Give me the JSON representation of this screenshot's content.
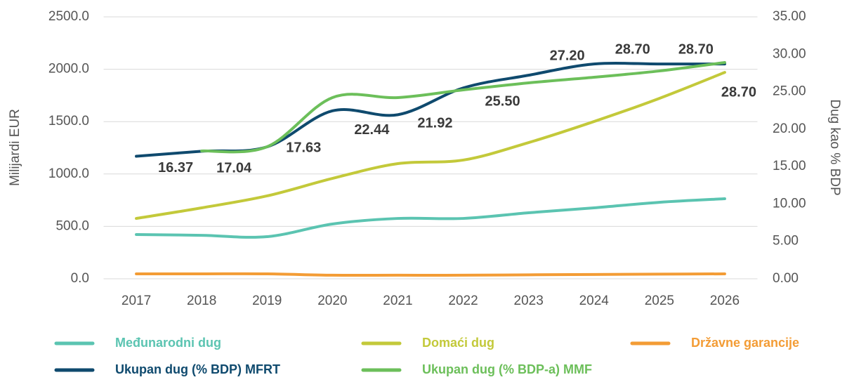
{
  "chart_data": {
    "type": "line",
    "y_label": "Milijardi EUR",
    "y2_label": "Dug kao % BDP",
    "categories": [
      "2017",
      "2018",
      "2019",
      "2020",
      "2021",
      "2022",
      "2023",
      "2024",
      "2025",
      "2026"
    ],
    "ylim": [
      0,
      2500
    ],
    "yticks": [
      {
        "value": 0,
        "label": "0.0"
      },
      {
        "value": 500,
        "label": "500.0"
      },
      {
        "value": 1000,
        "label": "1000.0"
      },
      {
        "value": 1500,
        "label": "1500.0"
      },
      {
        "value": 2000,
        "label": "2000.0"
      },
      {
        "value": 2500,
        "label": "2500.0"
      }
    ],
    "y2lim": [
      0,
      35
    ],
    "y2ticks": [
      {
        "value": 0,
        "label": "0.00"
      },
      {
        "value": 5,
        "label": "5.00"
      },
      {
        "value": 10,
        "label": "10.00"
      },
      {
        "value": 15,
        "label": "15.00"
      },
      {
        "value": 20,
        "label": "20.00"
      },
      {
        "value": 25,
        "label": "25.00"
      },
      {
        "value": 30,
        "label": "30.00"
      },
      {
        "value": 35,
        "label": "35.00"
      }
    ],
    "grid": true,
    "legend": "bottom",
    "series": [
      {
        "name": "Međunarodni dug",
        "color": "#5bc4b1",
        "values": [
          422,
          415,
          402,
          523,
          576,
          576,
          630,
          677,
          730,
          764
        ]
      },
      {
        "name": "Domaći dug",
        "color": "#c3c93a",
        "values": [
          576,
          677,
          791,
          958,
          1099,
          1133,
          1300,
          1501,
          1722,
          1970
        ]
      },
      {
        "name": "Državne garancije",
        "color": "#f39c35",
        "values": [
          47,
          47,
          47,
          34,
          34,
          34,
          38,
          41,
          44,
          47
        ]
      },
      {
        "name": "Ukupan dug (% BDP) MFRT",
        "color": "#0f4a6e",
        "axis": "y2",
        "values": [
          16.37,
          17.04,
          17.63,
          22.44,
          21.92,
          25.5,
          27.2,
          28.7,
          28.7,
          28.7
        ],
        "value_labels": [
          "16.37",
          "17.04",
          "17.63",
          "22.44",
          "21.92",
          "25.50",
          "27.20",
          "28.70",
          "28.70",
          "28.70"
        ]
      },
      {
        "name": "Ukupan dug (% BDP-a) MMF",
        "color": "#6cbf5a",
        "axis": "y2",
        "values": [
          null,
          17.08,
          17.64,
          24.21,
          24.21,
          25.24,
          26.18,
          26.93,
          27.77,
          28.9
        ]
      }
    ]
  }
}
